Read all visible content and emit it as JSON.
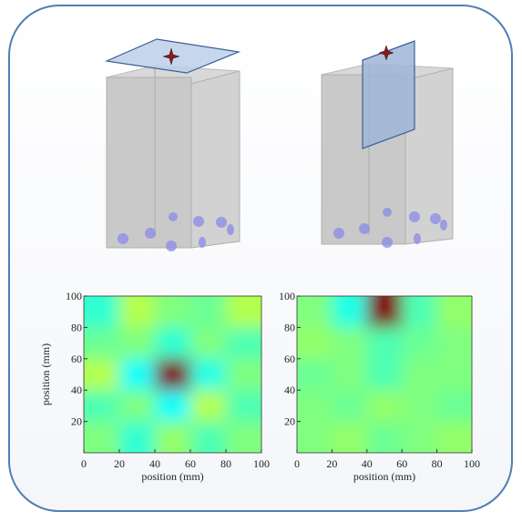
{
  "chart_data": [
    {
      "type": "heatmap",
      "xlabel": "position (mm)",
      "ylabel": "position (mm)",
      "xlim": [
        0,
        100
      ],
      "ylim": [
        0,
        100
      ],
      "xticks": [
        0,
        20,
        40,
        60,
        80,
        100
      ],
      "yticks": [
        20,
        40,
        60,
        80,
        100
      ],
      "x": [
        10,
        30,
        50,
        70,
        90
      ],
      "y": [
        10,
        30,
        50,
        70,
        90
      ],
      "values": [
        [
          0.5,
          0.42,
          0.52,
          0.45,
          0.5
        ],
        [
          0.45,
          0.5,
          0.38,
          0.55,
          0.45
        ],
        [
          0.55,
          0.38,
          1.0,
          0.4,
          0.5
        ],
        [
          0.48,
          0.5,
          0.42,
          0.5,
          0.45
        ],
        [
          0.42,
          0.55,
          0.5,
          0.48,
          0.55
        ]
      ]
    },
    {
      "type": "heatmap",
      "xlabel": "position (mm)",
      "ylabel": "position (mm)",
      "xlim": [
        0,
        100
      ],
      "ylim": [
        0,
        100
      ],
      "xticks": [
        0,
        20,
        40,
        60,
        80,
        100
      ],
      "yticks": [
        20,
        40,
        60,
        80,
        100
      ],
      "x": [
        10,
        30,
        50,
        70,
        90
      ],
      "y": [
        10,
        30,
        50,
        70,
        90
      ],
      "values": [
        [
          0.5,
          0.52,
          0.48,
          0.5,
          0.52
        ],
        [
          0.5,
          0.48,
          0.52,
          0.5,
          0.48
        ],
        [
          0.48,
          0.5,
          0.45,
          0.5,
          0.5
        ],
        [
          0.52,
          0.5,
          0.45,
          0.48,
          0.5
        ],
        [
          0.5,
          0.4,
          1.0,
          0.45,
          0.52
        ]
      ]
    }
  ]
}
